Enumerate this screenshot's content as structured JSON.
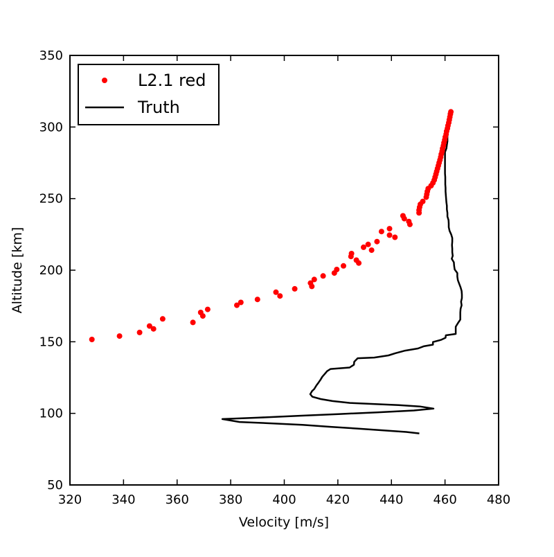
{
  "chart_data": {
    "type": "scatter",
    "title": "",
    "xlabel": "Velocity [m/s]",
    "ylabel": "Altitude [km]",
    "xlim": [
      320,
      480
    ],
    "ylim": [
      50,
      350
    ],
    "xticks": [
      "320",
      "340",
      "360",
      "380",
      "400",
      "420",
      "440",
      "460",
      "480"
    ],
    "yticks": [
      "50",
      "100",
      "150",
      "200",
      "250",
      "300",
      "350"
    ],
    "grid": false,
    "legend_position": "top-left",
    "series": [
      {
        "name": "L2.1 red",
        "kind": "scatter",
        "color": "#ff0000",
        "points": [
          [
            328.2,
            151.6
          ],
          [
            338.5,
            154.0
          ],
          [
            346.0,
            156.5
          ],
          [
            349.7,
            161.0
          ],
          [
            351.2,
            159.0
          ],
          [
            354.6,
            166.0
          ],
          [
            365.9,
            163.5
          ],
          [
            368.8,
            170.5
          ],
          [
            369.6,
            168.0
          ],
          [
            371.4,
            172.6
          ],
          [
            382.3,
            175.5
          ],
          [
            383.8,
            177.5
          ],
          [
            390.0,
            179.6
          ],
          [
            396.9,
            184.6
          ],
          [
            398.4,
            182.0
          ],
          [
            403.9,
            187.0
          ],
          [
            409.8,
            191.0
          ],
          [
            410.3,
            188.7
          ],
          [
            411.2,
            193.5
          ],
          [
            414.5,
            196.0
          ],
          [
            418.7,
            198.0
          ],
          [
            419.6,
            200.5
          ],
          [
            422.1,
            203.0
          ],
          [
            424.9,
            209.6
          ],
          [
            425.1,
            211.6
          ],
          [
            426.9,
            207.0
          ],
          [
            427.8,
            205.0
          ],
          [
            429.6,
            216.0
          ],
          [
            431.3,
            218.0
          ],
          [
            432.6,
            214.0
          ],
          [
            434.6,
            220.0
          ],
          [
            436.3,
            227.0
          ],
          [
            439.3,
            224.5
          ],
          [
            439.3,
            229.0
          ],
          [
            441.3,
            223.0
          ],
          [
            444.3,
            238.0
          ],
          [
            444.8,
            236.0
          ],
          [
            446.5,
            234.0
          ],
          [
            446.9,
            232.0
          ],
          [
            450.3,
            240.0
          ],
          [
            450.3,
            242.0
          ],
          [
            450.5,
            244.0
          ],
          [
            450.8,
            246.0
          ],
          [
            451.7,
            248.0
          ],
          [
            453.0,
            251.0
          ],
          [
            453.2,
            253.0
          ],
          [
            453.4,
            255.0
          ],
          [
            453.7,
            257.0
          ],
          [
            454.8,
            259.0
          ],
          [
            455.5,
            261.0
          ],
          [
            456.0,
            263.0
          ],
          [
            456.3,
            265.0
          ],
          [
            456.6,
            267.0
          ],
          [
            456.9,
            269.0
          ],
          [
            457.2,
            271.0
          ],
          [
            457.5,
            273.0
          ],
          [
            457.8,
            275.0
          ],
          [
            458.1,
            277.0
          ],
          [
            458.4,
            279.0
          ],
          [
            458.6,
            281.0
          ],
          [
            458.9,
            283.0
          ],
          [
            459.1,
            285.0
          ],
          [
            459.4,
            287.0
          ],
          [
            459.6,
            289.0
          ],
          [
            459.9,
            291.0
          ],
          [
            460.1,
            293.0
          ],
          [
            460.4,
            295.0
          ],
          [
            460.6,
            297.0
          ],
          [
            460.9,
            299.0
          ],
          [
            461.1,
            301.0
          ],
          [
            461.4,
            303.0
          ],
          [
            461.6,
            305.0
          ],
          [
            461.8,
            307.0
          ],
          [
            462.0,
            309.0
          ],
          [
            462.2,
            310.6
          ]
        ]
      },
      {
        "name": "Truth",
        "kind": "line",
        "color": "#000000",
        "points": [
          [
            450.4,
            86.0
          ],
          [
            445.5,
            87.0
          ],
          [
            427.3,
            89.4
          ],
          [
            417.3,
            90.6
          ],
          [
            406.8,
            92.0
          ],
          [
            395.2,
            93.0
          ],
          [
            383.3,
            94.0
          ],
          [
            376.9,
            96.0
          ],
          [
            390.0,
            97.0
          ],
          [
            406.5,
            98.4
          ],
          [
            420.2,
            99.5
          ],
          [
            434.7,
            100.7
          ],
          [
            448.4,
            102.0
          ],
          [
            455.7,
            103.3
          ],
          [
            450.6,
            104.8
          ],
          [
            442.7,
            105.8
          ],
          [
            424.5,
            107.3
          ],
          [
            418.0,
            108.6
          ],
          [
            413.6,
            110.0
          ],
          [
            410.5,
            111.6
          ],
          [
            409.7,
            113.4
          ],
          [
            410.4,
            115.6
          ],
          [
            411.2,
            117.0
          ],
          [
            412.0,
            119.5
          ],
          [
            412.8,
            121.5
          ],
          [
            413.5,
            123.4
          ],
          [
            414.2,
            125.6
          ],
          [
            415.1,
            127.5
          ],
          [
            416.0,
            129.5
          ],
          [
            417.3,
            131.0
          ],
          [
            424.4,
            132.0
          ],
          [
            426.0,
            134.0
          ],
          [
            426.1,
            136.0
          ],
          [
            427.4,
            138.5
          ],
          [
            433.6,
            139.0
          ],
          [
            438.9,
            140.5
          ],
          [
            441.4,
            142.0
          ],
          [
            445.1,
            143.8
          ],
          [
            449.9,
            145.3
          ],
          [
            452.0,
            146.8
          ],
          [
            455.5,
            148.0
          ],
          [
            455.5,
            149.8
          ],
          [
            458.5,
            151.3
          ],
          [
            460.2,
            152.8
          ],
          [
            460.3,
            154.5
          ],
          [
            464.0,
            155.5
          ],
          [
            464.0,
            158.0
          ],
          [
            464.0,
            160.5
          ],
          [
            464.8,
            163.0
          ],
          [
            465.7,
            165.5
          ],
          [
            465.7,
            168.0
          ],
          [
            465.7,
            170.5
          ],
          [
            465.8,
            173.0
          ],
          [
            466.2,
            175.5
          ],
          [
            466.0,
            178.0
          ],
          [
            466.3,
            180.5
          ],
          [
            466.3,
            183.0
          ],
          [
            466.2,
            185.5
          ],
          [
            465.8,
            188.0
          ],
          [
            465.3,
            190.5
          ],
          [
            464.8,
            193.0
          ],
          [
            464.6,
            195.5
          ],
          [
            464.6,
            198.0
          ],
          [
            463.6,
            200.5
          ],
          [
            463.4,
            203.0
          ],
          [
            463.3,
            205.5
          ],
          [
            462.5,
            208.0
          ],
          [
            462.9,
            210.0
          ],
          [
            462.7,
            212.5
          ],
          [
            462.7,
            215.0
          ],
          [
            462.6,
            217.5
          ],
          [
            462.7,
            220.0
          ],
          [
            462.7,
            222.5
          ],
          [
            462.3,
            225.0
          ],
          [
            461.7,
            227.5
          ],
          [
            461.4,
            230.0
          ],
          [
            461.4,
            232.5
          ],
          [
            461.3,
            235.0
          ],
          [
            460.9,
            237.5
          ],
          [
            460.9,
            240.0
          ],
          [
            460.7,
            242.5
          ],
          [
            460.7,
            245.0
          ],
          [
            460.5,
            247.5
          ],
          [
            460.4,
            250.0
          ],
          [
            460.3,
            252.5
          ],
          [
            460.2,
            255.0
          ],
          [
            460.2,
            257.5
          ],
          [
            460.1,
            260.0
          ],
          [
            460.1,
            262.5
          ],
          [
            460.1,
            265.0
          ],
          [
            460.0,
            267.5
          ],
          [
            460.0,
            270.0
          ],
          [
            460.0,
            272.5
          ],
          [
            460.0,
            275.0
          ],
          [
            460.0,
            277.5
          ],
          [
            460.0,
            280.0
          ],
          [
            460.0,
            282.5
          ],
          [
            460.5,
            285.0
          ],
          [
            460.7,
            287.5
          ],
          [
            460.9,
            290.0
          ],
          [
            460.9,
            292.5
          ],
          [
            460.9,
            295.0
          ],
          [
            460.9,
            297.5
          ],
          [
            461.0,
            300.0
          ],
          [
            461.2,
            302.5
          ],
          [
            461.3,
            305.0
          ],
          [
            461.3,
            307.5
          ],
          [
            461.4,
            310.0
          ]
        ]
      }
    ]
  }
}
